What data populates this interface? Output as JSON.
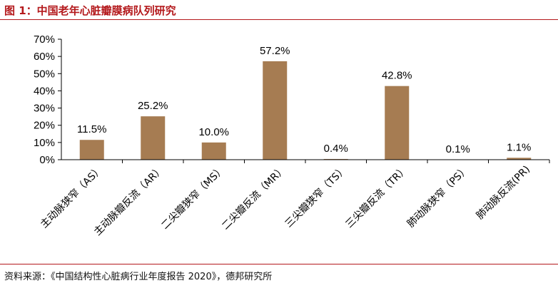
{
  "header": {
    "title": "图 1：中国老年心脏瓣膜病队列研究"
  },
  "footer": {
    "source": "资料来源：《中国结构性心脏病行业年度报告 2020》，德邦研究所"
  },
  "colors": {
    "bar": "#a67c52",
    "accent": "#b4191c",
    "axis": "#000000"
  },
  "chart_data": {
    "type": "bar",
    "title": "中国老年心脏瓣膜病队列研究",
    "xlabel": "",
    "ylabel": "",
    "ylim": [
      0,
      70
    ],
    "y_ticks": [
      "0%",
      "10%",
      "20%",
      "30%",
      "40%",
      "50%",
      "60%",
      "70%"
    ],
    "categories": [
      "主动脉狭窄（AS）",
      "主动脉瓣反流（AR）",
      "二尖瓣狭窄（MS）",
      "二尖瓣反流（MR）",
      "三尖瓣狭窄（TS）",
      "三尖瓣反流（TR）",
      "肺动脉狭窄（PS）",
      "肺动脉反流(PR)"
    ],
    "values": [
      11.5,
      25.2,
      10.0,
      57.2,
      0.4,
      42.8,
      0.1,
      1.1
    ],
    "data_labels": [
      "11.5%",
      "25.2%",
      "10.0%",
      "57.2%",
      "0.4%",
      "42.8%",
      "0.1%",
      "1.1%"
    ],
    "grid": false,
    "legend": "none"
  }
}
